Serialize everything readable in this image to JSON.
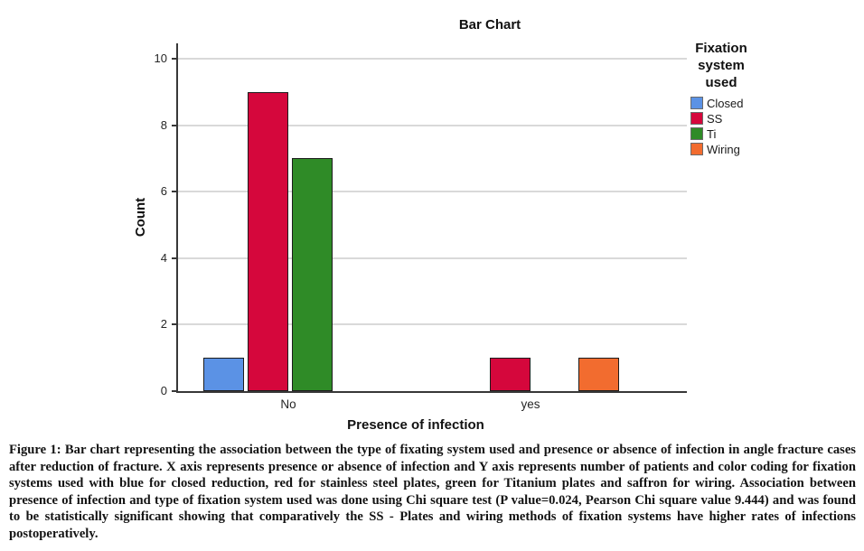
{
  "figure": {
    "title": "Bar Chart",
    "x_axis_label": "Presence of infection",
    "y_axis_label": "Count"
  },
  "legend": {
    "title": "Fixation system used",
    "items": [
      {
        "label": "Closed",
        "color": "#5B92E5"
      },
      {
        "label": "SS",
        "color": "#D5073C"
      },
      {
        "label": "Ti",
        "color": "#2F8B27"
      },
      {
        "label": "Wiring",
        "color": "#F26C2F"
      }
    ]
  },
  "chart_data": {
    "type": "bar",
    "title": "Bar Chart",
    "xlabel": "Presence of infection",
    "ylabel": "Count",
    "categories": [
      "No",
      "yes"
    ],
    "series": [
      {
        "name": "Closed",
        "color": "#5B92E5",
        "values": [
          1,
          0
        ]
      },
      {
        "name": "SS",
        "color": "#D5073C",
        "values": [
          9,
          1
        ]
      },
      {
        "name": "Ti",
        "color": "#2F8B27",
        "values": [
          7,
          0
        ]
      },
      {
        "name": "Wiring",
        "color": "#F26C2F",
        "values": [
          0,
          1
        ]
      }
    ],
    "ylim": [
      0,
      10
    ],
    "yticks": [
      0,
      2,
      4,
      6,
      8,
      10
    ],
    "grid": true,
    "legend_title": "Fixation system used",
    "legend_position": "right"
  },
  "caption": {
    "text": "Figure 1: Bar chart representing the association between the type of fixating system used and presence or absence of infection in angle fracture cases after reduction of fracture. X axis represents presence or absence of infection and Y axis represents number of patients and color coding for fixation systems used with blue for closed reduction, red for stainless steel plates, green for Titanium plates and saffron for wiring. Association between presence of infection and type of fixation system used was done using Chi square test (P value=0.024, Pearson Chi square value 9.444) and was found to be statistically significant showing that comparatively the SS - Plates and wiring methods of fixation systems have higher rates of infections postoperatively."
  },
  "colors": {
    "axis": "#383838",
    "gridline": "#d9d9d9",
    "bar_border": "#1c1c1c"
  }
}
